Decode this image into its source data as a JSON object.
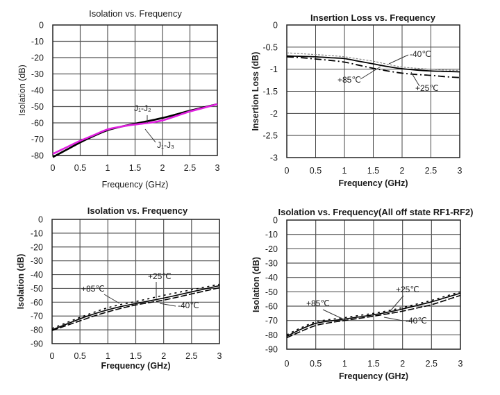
{
  "chart_data": [
    {
      "type": "line",
      "title": "Isolation vs. Frequency",
      "xlabel": "Frequency (GHz)",
      "ylabel": "Isolation (dB)",
      "xlim": [
        0,
        3
      ],
      "ylim": [
        -80,
        0
      ],
      "xticks": [
        "0",
        "0.5",
        "1",
        "1.5",
        "2",
        "2.5",
        "3"
      ],
      "yticks": [
        "0",
        "-10",
        "-20",
        "-30",
        "-40",
        "-50",
        "-60",
        "-70",
        "-80"
      ],
      "grid": true,
      "x": [
        0,
        0.25,
        0.5,
        0.75,
        1,
        1.25,
        1.5,
        1.75,
        2,
        2.25,
        2.5,
        2.75,
        3
      ],
      "series": [
        {
          "name": "J1-J2",
          "label": "J₁-J₂",
          "color": "#000000",
          "style": "solid",
          "values": [
            -81,
            -76.5,
            -72,
            -68,
            -64.5,
            -62.3,
            -60.5,
            -58.8,
            -57,
            -54.8,
            -52.5,
            -50.5,
            -48.5
          ]
        },
        {
          "name": "J1-J3",
          "label": "J₁-J₃",
          "color": "#e020e0",
          "style": "solid",
          "values": [
            -79,
            -75,
            -71,
            -67.5,
            -64,
            -62.3,
            -61,
            -60,
            -58.5,
            -55.8,
            -53,
            -50.8,
            -48.5
          ]
        }
      ],
      "annotations": [
        {
          "text": "J₁-J₂",
          "series": "J1-J2"
        },
        {
          "text": "J₁-J₃",
          "series": "J1-J3"
        }
      ]
    },
    {
      "type": "line",
      "title": "Insertion Loss vs. Frequency",
      "xlabel": "Frequency (GHz)",
      "ylabel": "Insertion Loss (dB)",
      "xlim": [
        0,
        3
      ],
      "ylim": [
        -3,
        0
      ],
      "xticks": [
        "0",
        "0.5",
        "1",
        "1.5",
        "2",
        "2.5",
        "3"
      ],
      "yticks": [
        "0",
        "-0.5",
        "-1",
        "-1.5",
        "-2",
        "-2.5",
        "-3"
      ],
      "grid": true,
      "x": [
        0,
        0.25,
        0.5,
        0.75,
        1,
        1.25,
        1.5,
        1.75,
        2,
        2.25,
        2.5,
        2.75,
        3
      ],
      "series": [
        {
          "name": "-40℃",
          "color": "#888888",
          "style": "dashed-thin",
          "values": [
            -0.63,
            -0.65,
            -0.67,
            -0.69,
            -0.72,
            -0.77,
            -0.82,
            -0.89,
            -0.95,
            -0.98,
            -1.0,
            -1.02,
            -1.03
          ]
        },
        {
          "name": "+25℃",
          "color": "#000000",
          "style": "solid",
          "values": [
            -0.7,
            -0.71,
            -0.72,
            -0.74,
            -0.76,
            -0.82,
            -0.88,
            -0.94,
            -0.99,
            -1.02,
            -1.04,
            -1.05,
            -1.06
          ]
        },
        {
          "name": "+85℃",
          "color": "#000000",
          "style": "dash-dot",
          "values": [
            -0.72,
            -0.74,
            -0.77,
            -0.8,
            -0.84,
            -0.91,
            -0.98,
            -1.04,
            -1.09,
            -1.12,
            -1.14,
            -1.17,
            -1.19
          ]
        }
      ],
      "annotations": [
        {
          "text": "-40℃",
          "series": "-40℃"
        },
        {
          "text": "+85℃",
          "series": "+85℃"
        },
        {
          "text": "+25℃",
          "series": "+25℃"
        }
      ]
    },
    {
      "type": "line",
      "title": "Isolation vs. Frequency",
      "xlabel": "Frequency (GHz)",
      "ylabel": "Isolation (dB)",
      "xlim": [
        0,
        3
      ],
      "ylim": [
        -90,
        0
      ],
      "xticks": [
        "0",
        "0.5",
        "1",
        "1.5",
        "2",
        "2.5",
        "3"
      ],
      "yticks": [
        "0",
        "-10",
        "-20",
        "-30",
        "-40",
        "-50",
        "-60",
        "-70",
        "-80",
        "-90"
      ],
      "grid": true,
      "x": [
        0,
        0.25,
        0.5,
        0.75,
        1,
        1.25,
        1.5,
        1.75,
        2,
        2.25,
        2.5,
        2.75,
        3
      ],
      "series": [
        {
          "name": "+85℃",
          "color": "#000000",
          "style": "dotted",
          "values": [
            -79,
            -75,
            -71,
            -67.3,
            -64,
            -61.5,
            -59.5,
            -57.3,
            -55,
            -53,
            -51,
            -49,
            -47
          ]
        },
        {
          "name": "+25℃",
          "color": "#000000",
          "style": "solid",
          "values": [
            -80,
            -76,
            -72,
            -68.5,
            -65.5,
            -63,
            -61,
            -59,
            -57,
            -54.8,
            -52.5,
            -50.3,
            -48
          ]
        },
        {
          "name": "-40℃",
          "color": "#000000",
          "style": "dashed",
          "values": [
            -80.5,
            -77,
            -73.5,
            -70,
            -67,
            -64.3,
            -62,
            -60.2,
            -58.5,
            -56.3,
            -54,
            -51.8,
            -49.5
          ]
        }
      ],
      "annotations": [
        {
          "text": "+85℃",
          "series": "+85℃"
        },
        {
          "text": "+25℃",
          "series": "+25℃"
        },
        {
          "text": "-40℃",
          "series": "-40℃"
        }
      ]
    },
    {
      "type": "line",
      "title": "Isolation vs. Frequency(All off state RF1-RF2)",
      "xlabel": "Frequency (GHz)",
      "ylabel": "Isolation (dB)",
      "xlim": [
        0,
        3
      ],
      "ylim": [
        -90,
        0
      ],
      "xticks": [
        "0",
        "0.5",
        "1",
        "1.5",
        "2",
        "2.5",
        "3"
      ],
      "yticks": [
        "0",
        "-10",
        "-20",
        "-30",
        "-40",
        "-50",
        "-60",
        "-70",
        "-80",
        "-90"
      ],
      "grid": true,
      "x": [
        0,
        0.25,
        0.5,
        0.75,
        1,
        1.25,
        1.5,
        1.75,
        2,
        2.25,
        2.5,
        2.75,
        3
      ],
      "series": [
        {
          "name": "+85℃",
          "color": "#000000",
          "style": "dotted",
          "values": [
            -80,
            -75,
            -71,
            -69.3,
            -68,
            -66.5,
            -65,
            -63.2,
            -61,
            -58.5,
            -56,
            -53,
            -50
          ]
        },
        {
          "name": "+25℃",
          "color": "#000000",
          "style": "solid",
          "values": [
            -81,
            -76,
            -72,
            -70.3,
            -69,
            -67.5,
            -66,
            -64.2,
            -62,
            -59.5,
            -57,
            -54,
            -51
          ]
        },
        {
          "name": "-40℃",
          "color": "#000000",
          "style": "dashed",
          "values": [
            -82,
            -77.5,
            -73.5,
            -71.5,
            -70,
            -68.5,
            -67,
            -65.3,
            -63.5,
            -61.3,
            -59,
            -55.8,
            -52.5
          ]
        }
      ],
      "annotations": [
        {
          "text": "+25℃",
          "series": "+25℃"
        },
        {
          "text": "+85℃",
          "series": "+85℃"
        },
        {
          "text": "-40℃",
          "series": "-40℃"
        }
      ]
    }
  ]
}
